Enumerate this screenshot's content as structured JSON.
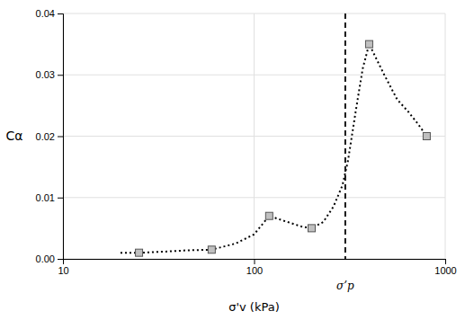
{
  "chart_data": {
    "type": "line",
    "xlabel": "σ'v (kPa)",
    "ylabel": "Cα",
    "log": "x",
    "grid": true,
    "xlim": [
      10,
      1000
    ],
    "xticks": [
      10,
      100,
      1000
    ],
    "ylim": [
      0.0,
      0.04
    ],
    "yticks": [
      {
        "value": 0,
        "label": "0.00"
      },
      0.01,
      0.02,
      0.03,
      0.04
    ],
    "series": [
      {
        "type": "line",
        "line_style": "dotted",
        "color": "#000000",
        "x": [
          20,
          25,
          35,
          45,
          60,
          80,
          100,
          120,
          150,
          180,
          200,
          230,
          260,
          290,
          310,
          340,
          370,
          400,
          480,
          560,
          640,
          720,
          800
        ],
        "values": [
          0.001,
          0.001,
          0.0012,
          0.0014,
          0.0015,
          0.0025,
          0.004,
          0.007,
          0.006,
          0.0052,
          0.005,
          0.006,
          0.0085,
          0.012,
          0.016,
          0.024,
          0.031,
          0.035,
          0.03,
          0.026,
          0.024,
          0.022,
          0.02
        ]
      },
      {
        "type": "scatter",
        "marker": "square",
        "color": "#c0c0c0",
        "x": [
          25,
          60,
          120,
          200,
          400,
          800
        ],
        "values": [
          0.001,
          0.0015,
          0.007,
          0.005,
          0.035,
          0.02
        ]
      }
    ],
    "annotations": [
      {
        "text": "σ’p",
        "x": 300
      }
    ]
  }
}
